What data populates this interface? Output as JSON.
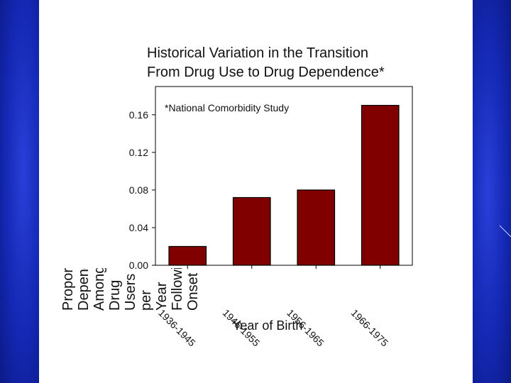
{
  "slide": {
    "title_line1": "Historical Variation in the Transition",
    "title_line2": "From Drug Use to Drug Dependence*",
    "note": "*National Comorbidity Study"
  },
  "chart_data": {
    "type": "bar",
    "title": "Historical Variation in the Transition From Drug Use to Drug Dependence*",
    "xlabel": "Year of Birth",
    "ylabel": "Proportion Dependent Among Drug Users per Year Following Onset",
    "categories": [
      "1936-1945",
      "1946-1955",
      "1956-1965",
      "1966-1975"
    ],
    "values": [
      0.02,
      0.072,
      0.08,
      0.17
    ],
    "ylim": [
      0,
      0.19
    ],
    "yticks": [
      "0.00",
      "0.04",
      "0.08",
      "0.12",
      "0.16"
    ],
    "annotation": "*National Comorbidity Study",
    "bar_color": "#800000",
    "grid": false
  },
  "colors": {
    "background_blue": "#1428b4",
    "bar": "#800000"
  }
}
